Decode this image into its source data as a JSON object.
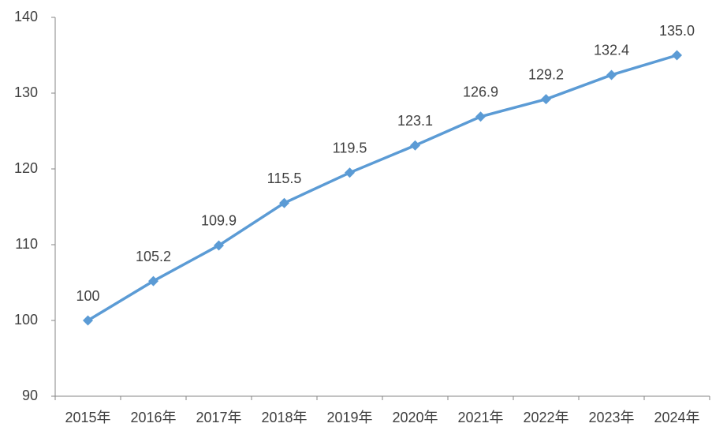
{
  "chart_data": {
    "type": "line",
    "categories": [
      "2015年",
      "2016年",
      "2017年",
      "2018年",
      "2019年",
      "2020年",
      "2021年",
      "2022年",
      "2023年",
      "2024年"
    ],
    "series": [
      {
        "color": "#5b9bd5",
        "values": [
          100,
          105.2,
          109.9,
          115.5,
          119.5,
          123.1,
          126.9,
          129.2,
          132.4,
          135.0
        ],
        "value_labels": [
          "100",
          "105.2",
          "109.9",
          "115.5",
          "119.5",
          "123.1",
          "126.9",
          "129.2",
          "132.4",
          "135.0"
        ]
      }
    ],
    "ylim": [
      90,
      140
    ],
    "yticks": [
      90,
      100,
      110,
      120,
      130,
      140
    ],
    "grid": false
  }
}
